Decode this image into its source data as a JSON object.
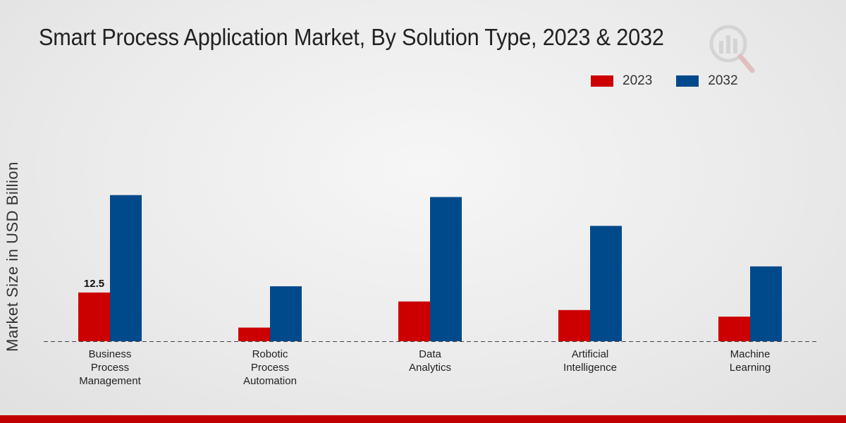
{
  "colors": {
    "series_2023": "#cc0000",
    "series_2032": "#004a8c",
    "accent_bar": "#c00000"
  },
  "chart_data": {
    "type": "bar",
    "title": "Smart Process Application Market, By Solution Type, 2023 & 2032",
    "xlabel": "",
    "ylabel": "Market Size in USD Billion",
    "categories": [
      [
        "Business",
        "Process",
        "Management"
      ],
      [
        "Robotic",
        "Process",
        "Automation"
      ],
      [
        "Data",
        "Analytics"
      ],
      [
        "Artificial",
        "Intelligence"
      ],
      [
        "Machine",
        "Learning"
      ]
    ],
    "series": [
      {
        "name": "2023",
        "values": [
          12.5,
          3.5,
          10.2,
          8.0,
          6.3
        ]
      },
      {
        "name": "2032",
        "values": [
          37.5,
          14.1,
          37.0,
          29.6,
          19.2
        ]
      }
    ],
    "data_labels": [
      {
        "series": 0,
        "index": 0,
        "text": "12.5"
      }
    ],
    "ylim": [
      0,
      55
    ],
    "legend_position": "top-right",
    "grid": false
  }
}
